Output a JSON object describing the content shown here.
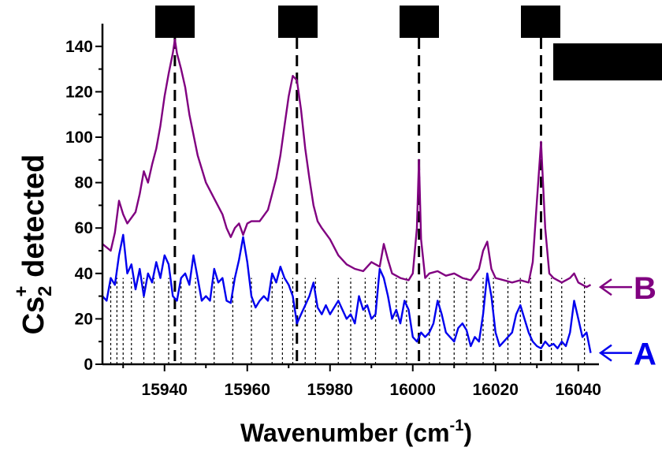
{
  "chart_data": {
    "type": "line",
    "title": "",
    "xlabel": "Wavenumber (cm-1)",
    "xlabel_parts": {
      "main": "Wavenumber (cm",
      "sup": "-1",
      "tail": ")"
    },
    "ylabel": "Cs2+ detected",
    "ylabel_parts": {
      "base": "Cs",
      "sub": "2",
      "sup": "+",
      "tail": " detected"
    },
    "xlim": [
      15925,
      16045
    ],
    "ylim": [
      0,
      150
    ],
    "xticks": [
      15940,
      15960,
      15980,
      16000,
      16020,
      16040
    ],
    "yticks": [
      0,
      20,
      40,
      60,
      80,
      100,
      120,
      140
    ],
    "grid": false,
    "series": [
      {
        "name": "B",
        "color": "#800080",
        "x": [
          15925,
          15927,
          15928,
          15929,
          15930,
          15931,
          15933,
          15934,
          15935,
          15936,
          15937,
          15938,
          15939,
          15940,
          15941,
          15942,
          15942.5,
          15943,
          15944,
          15945,
          15946,
          15948,
          15950,
          15952,
          15954,
          15955,
          15956,
          15957,
          15958,
          15959,
          15960,
          15961,
          15963,
          15965,
          15966,
          15967,
          15968,
          15969,
          15970,
          15971,
          15972,
          15973,
          15974,
          15975,
          15976,
          15977,
          15978,
          15980,
          15982,
          15984,
          15986,
          15988,
          15990,
          15992,
          15993,
          15994,
          15995,
          15997,
          15999,
          16000,
          16001,
          16001.5,
          16002,
          16003,
          16004,
          16006,
          16008,
          16010,
          16012,
          16014,
          16016,
          16017,
          16018,
          16019,
          16020,
          16022,
          16024,
          16026,
          16028,
          16029,
          16030,
          16031,
          16032,
          16033,
          16034,
          16036,
          16038,
          16039,
          16040,
          16042,
          16043
        ],
        "values": [
          53,
          50,
          58,
          72,
          66,
          62,
          67,
          75,
          85,
          80,
          88,
          95,
          105,
          118,
          128,
          137,
          143,
          137,
          130,
          122,
          110,
          92,
          80,
          73,
          66,
          60,
          56,
          60,
          62,
          57,
          62,
          63,
          63,
          68,
          75,
          82,
          92,
          105,
          118,
          127,
          125,
          112,
          95,
          82,
          70,
          63,
          60,
          55,
          48,
          44,
          42,
          41,
          45,
          43,
          53,
          46,
          40,
          38,
          37,
          40,
          60,
          90,
          55,
          38,
          40,
          41,
          39,
          40,
          38,
          37,
          42,
          50,
          54,
          42,
          38,
          37,
          36,
          37,
          36,
          45,
          72,
          98,
          60,
          40,
          38,
          36,
          38,
          40,
          36,
          34,
          35
        ]
      },
      {
        "name": "A",
        "color": "#0000ee",
        "x": [
          15925,
          15926,
          15927,
          15928,
          15929,
          15930,
          15931,
          15932,
          15933,
          15934,
          15935,
          15936,
          15937,
          15938,
          15939,
          15940,
          15941,
          15942,
          15943,
          15944,
          15945,
          15946,
          15947,
          15948,
          15949,
          15950,
          15951,
          15952,
          15953,
          15954,
          15955,
          15956,
          15957,
          15958,
          15959,
          15960,
          15961,
          15962,
          15963,
          15964,
          15965,
          15966,
          15967,
          15968,
          15969,
          15970,
          15971,
          15972,
          15973,
          15974,
          15975,
          15976,
          15977,
          15978,
          15979,
          15980,
          15981,
          15982,
          15983,
          15984,
          15985,
          15986,
          15987,
          15988,
          15989,
          15990,
          15991,
          15992,
          15993,
          15994,
          15995,
          15996,
          15997,
          15998,
          15999,
          16000,
          16001,
          16002,
          16003,
          16004,
          16005,
          16006,
          16007,
          16008,
          16009,
          16010,
          16011,
          16012,
          16013,
          16014,
          16015,
          16016,
          16017,
          16018,
          16019,
          16020,
          16021,
          16022,
          16023,
          16024,
          16025,
          16026,
          16027,
          16028,
          16029,
          16030,
          16031,
          16032,
          16033,
          16034,
          16035,
          16036,
          16037,
          16038,
          16039,
          16040,
          16041,
          16042,
          16043
        ],
        "values": [
          30,
          28,
          38,
          35,
          48,
          57,
          40,
          44,
          33,
          42,
          30,
          40,
          36,
          45,
          38,
          48,
          44,
          30,
          28,
          38,
          40,
          35,
          48,
          38,
          28,
          30,
          28,
          42,
          36,
          38,
          28,
          27,
          38,
          46,
          56,
          45,
          30,
          25,
          28,
          30,
          28,
          40,
          36,
          43,
          38,
          35,
          30,
          18,
          22,
          26,
          30,
          36,
          25,
          22,
          26,
          22,
          25,
          28,
          24,
          20,
          22,
          18,
          30,
          24,
          26,
          20,
          22,
          42,
          38,
          30,
          20,
          24,
          18,
          28,
          24,
          12,
          10,
          14,
          12,
          14,
          18,
          28,
          22,
          14,
          12,
          10,
          16,
          18,
          15,
          8,
          12,
          10,
          22,
          40,
          30,
          14,
          8,
          10,
          12,
          14,
          22,
          26,
          20,
          14,
          10,
          8,
          7,
          10,
          8,
          9,
          7,
          10,
          8,
          14,
          28,
          20,
          12,
          14,
          5
        ]
      }
    ],
    "dashed_lines_x": [
      15942.5,
      15972,
      16001.5,
      16031
    ],
    "dotted_lines_x": [
      15927,
      15928.5,
      15930,
      15932,
      15935,
      15937.5,
      15941,
      15944,
      15947.5,
      15952,
      15956.5,
      15961,
      15966,
      15968.5,
      15971,
      15974,
      15976.5,
      15982,
      15985,
      15988.5,
      15991,
      15996,
      15998.5,
      16004,
      16006.5,
      16010,
      16013,
      16017,
      16019.5,
      16023,
      16026,
      16028.5,
      16033.5,
      16036,
      16041.5
    ],
    "trace_labels": [
      {
        "text": "B",
        "color": "#800080",
        "at_y": 34
      },
      {
        "text": "A",
        "color": "#0000ee",
        "at_y": 5
      }
    ],
    "redacted_boxes_count": 5
  }
}
